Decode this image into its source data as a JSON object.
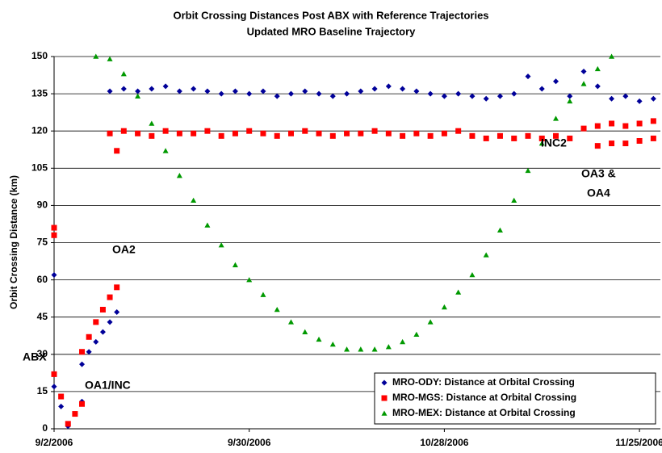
{
  "chart_data": {
    "type": "scatter",
    "title": "Orbit Crossing Distances Post ABX with Reference Trajectories",
    "subtitle": "Updated MRO Baseline Trajectory",
    "y_label": "Orbit Crossing Distance (km)",
    "xlim": [
      "2006-09-02",
      "2006-11-28"
    ],
    "xticks": [
      {
        "value": "2006-09-02",
        "label": "9/2/2006"
      },
      {
        "value": "2006-09-30",
        "label": "9/30/2006"
      },
      {
        "value": "2006-10-28",
        "label": "10/28/2006"
      },
      {
        "value": "2006-11-25",
        "label": "11/25/2006"
      }
    ],
    "ylim": [
      0,
      150
    ],
    "yticks": [
      0,
      15,
      30,
      45,
      60,
      75,
      90,
      105,
      120,
      135,
      150
    ],
    "grid": true,
    "legend": "lower right",
    "annotations": [
      "ABX",
      "OA1/INC",
      "OA2",
      "INC2",
      "OA3 &",
      "OA4"
    ],
    "series": [
      {
        "name": "MRO-ODY: Distance at Orbital Crossing",
        "color": "#000099",
        "marker": "diamond",
        "x": [
          "2006-09-02",
          "2006-09-02",
          "2006-09-03",
          "2006-09-04",
          "2006-09-05",
          "2006-09-06",
          "2006-09-06",
          "2006-09-07",
          "2006-09-08",
          "2006-09-09",
          "2006-09-10",
          "2006-09-11",
          "2006-09-10",
          "2006-09-12",
          "2006-09-14",
          "2006-09-16",
          "2006-09-18",
          "2006-09-20",
          "2006-09-22",
          "2006-09-24",
          "2006-09-26",
          "2006-09-28",
          "2006-09-30",
          "2006-10-02",
          "2006-10-04",
          "2006-10-06",
          "2006-10-08",
          "2006-10-10",
          "2006-10-12",
          "2006-10-14",
          "2006-10-16",
          "2006-10-18",
          "2006-10-20",
          "2006-10-22",
          "2006-10-24",
          "2006-10-26",
          "2006-10-28",
          "2006-10-30",
          "2006-11-01",
          "2006-11-03",
          "2006-11-05",
          "2006-11-07",
          "2006-11-09",
          "2006-11-11",
          "2006-11-13",
          "2006-11-15",
          "2006-11-17",
          "2006-11-19",
          "2006-11-21",
          "2006-11-23",
          "2006-11-25",
          "2006-11-27"
        ],
        "values": [
          62,
          17,
          9,
          1,
          6,
          11,
          26,
          31,
          35,
          39,
          43,
          47,
          136,
          137,
          136,
          137,
          138,
          136,
          137,
          136,
          135,
          136,
          135,
          136,
          134,
          135,
          136,
          135,
          134,
          135,
          136,
          137,
          138,
          137,
          136,
          135,
          134,
          135,
          134,
          133,
          134,
          135,
          142,
          137,
          140,
          134,
          144,
          138,
          133,
          134,
          132,
          133
        ]
      },
      {
        "name": "MRO-MGS: Distance at Orbital Crossing",
        "color": "#ff0000",
        "marker": "square",
        "x": [
          "2006-09-02",
          "2006-09-02",
          "2006-09-02",
          "2006-09-03",
          "2006-09-04",
          "2006-09-05",
          "2006-09-06",
          "2006-09-06",
          "2006-09-07",
          "2006-09-08",
          "2006-09-09",
          "2006-09-10",
          "2006-09-11",
          "2006-09-11",
          "2006-09-10",
          "2006-09-12",
          "2006-09-14",
          "2006-09-16",
          "2006-09-18",
          "2006-09-20",
          "2006-09-22",
          "2006-09-24",
          "2006-09-26",
          "2006-09-28",
          "2006-09-30",
          "2006-10-02",
          "2006-10-04",
          "2006-10-06",
          "2006-10-08",
          "2006-10-10",
          "2006-10-12",
          "2006-10-14",
          "2006-10-16",
          "2006-10-18",
          "2006-10-20",
          "2006-10-22",
          "2006-10-24",
          "2006-10-26",
          "2006-10-28",
          "2006-10-30",
          "2006-11-01",
          "2006-11-03",
          "2006-11-05",
          "2006-11-07",
          "2006-11-09",
          "2006-11-11",
          "2006-11-13",
          "2006-11-15",
          "2006-11-17",
          "2006-11-19",
          "2006-11-21",
          "2006-11-23",
          "2006-11-25",
          "2006-11-27",
          "2006-11-19",
          "2006-11-21",
          "2006-11-23",
          "2006-11-25",
          "2006-11-27"
        ],
        "values": [
          78,
          81,
          22,
          13,
          2,
          6,
          10,
          31,
          37,
          43,
          48,
          53,
          57,
          112,
          119,
          120,
          119,
          118,
          120,
          119,
          119,
          120,
          118,
          119,
          120,
          119,
          118,
          119,
          120,
          119,
          118,
          119,
          119,
          120,
          119,
          118,
          119,
          118,
          119,
          120,
          118,
          117,
          118,
          117,
          118,
          117,
          118,
          117,
          121,
          122,
          123,
          122,
          123,
          124,
          114,
          115,
          115,
          116,
          117
        ]
      },
      {
        "name": "MRO-MEX: Distance at Orbital Crossing",
        "color": "#009900",
        "marker": "triangle",
        "x": [
          "2006-09-08",
          "2006-09-10",
          "2006-09-12",
          "2006-09-14",
          "2006-09-16",
          "2006-09-18",
          "2006-09-20",
          "2006-09-22",
          "2006-09-24",
          "2006-09-26",
          "2006-09-28",
          "2006-09-30",
          "2006-10-02",
          "2006-10-04",
          "2006-10-06",
          "2006-10-08",
          "2006-10-10",
          "2006-10-12",
          "2006-10-14",
          "2006-10-16",
          "2006-10-18",
          "2006-10-20",
          "2006-10-22",
          "2006-10-24",
          "2006-10-26",
          "2006-10-28",
          "2006-10-30",
          "2006-11-01",
          "2006-11-03",
          "2006-11-05",
          "2006-11-07",
          "2006-11-09",
          "2006-11-11",
          "2006-11-13",
          "2006-11-15",
          "2006-11-17",
          "2006-11-19",
          "2006-11-21"
        ],
        "values": [
          150,
          149,
          143,
          134,
          123,
          112,
          102,
          92,
          82,
          74,
          66,
          60,
          54,
          48,
          43,
          39,
          36,
          34,
          32,
          32,
          32,
          33,
          35,
          38,
          43,
          49,
          55,
          62,
          70,
          80,
          92,
          104,
          115,
          125,
          132,
          139,
          145,
          150
        ]
      }
    ]
  }
}
